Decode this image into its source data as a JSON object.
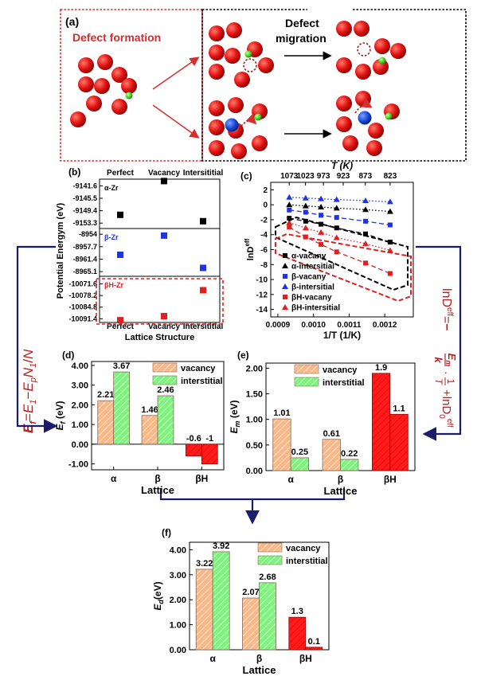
{
  "colors": {
    "atom_red": "#e31414",
    "atom_green": "#44d11e",
    "atom_blue": "#1346d6",
    "frame_red": "#d92b2b",
    "arrow_red": "#d33030",
    "navy": "#1b1b6b",
    "alpha": "#000000",
    "beta": "#1f33e0",
    "betaH": "#e02020",
    "bar_vacancy": "#f7b98a",
    "bar_interstitial": "#7ff27f",
    "bar_red": "#ff1a1a"
  },
  "panel_a": {
    "tag": "(a)",
    "formation_label": "Defect formation",
    "migration_label_1": "Defect",
    "migration_label_2": "migration"
  },
  "formula_left": {
    "lhs": "E",
    "lhs_sub": "f",
    "eq": "=",
    "t1": "E",
    "t1_sub": "1",
    "minus": "−",
    "t2": "E",
    "t2_sub": "p",
    "n1": "N",
    "n1_sub": "1",
    "slash": "/",
    "n": "N"
  },
  "formula_right": {
    "lhs": "lnD",
    "lhs_sup": "eff",
    "eq": "=",
    "neg": "−",
    "num": "E",
    "num_sub": "m",
    "den": "k",
    "dot": "·",
    "one": "1",
    "T": "T",
    "plus": "+",
    "ln": "lnD",
    "ln_sub": "0",
    "ln_sup": "eff"
  },
  "chart_data": [
    {
      "id": "b",
      "tag": "(b)",
      "type": "scatter",
      "xlabel": "Lattice Structure",
      "ylabel": "Potential Energym (eV)",
      "categories": [
        "Perfect",
        "Vacancy",
        "Intersititial"
      ],
      "panels": [
        {
          "name": "α-Zr",
          "ticks": [
            -9141.6,
            -9145.5,
            -9149.4,
            -9153.3
          ],
          "ylim": [
            -9155.0,
            -9139.5
          ],
          "values": [
            -9150.7,
            -9140.1,
            -9152.7
          ]
        },
        {
          "name": "β-Zr",
          "ticks": [
            -8954.0,
            -8957.7,
            -8961.4,
            -8965.1
          ],
          "ylim": [
            -8966.5,
            -8952.3
          ],
          "values": [
            -8960.1,
            -8954.4,
            -8964.0
          ]
        },
        {
          "name": "βH-Zr",
          "ticks": [
            -10071.6,
            -10078.2,
            -10084.8,
            -10091.4
          ],
          "ylim": [
            -10093.5,
            -10067.3
          ],
          "values": [
            -10092.2,
            -10089.9,
            -10075.2
          ]
        }
      ]
    },
    {
      "id": "c",
      "tag": "(c)",
      "type": "scatter",
      "xlabel": "1/T (1/K)",
      "ylabel": "lnD",
      "ylabel_sup": "eff",
      "top_axis_label": "T (K)",
      "top_ticks": [
        823,
        873,
        923,
        973,
        1023,
        1073
      ],
      "xlim": [
        0.00088,
        0.00128
      ],
      "xticks": [
        0.0009,
        0.001,
        0.0011,
        0.0012
      ],
      "xtick_labels": [
        "0.0009",
        "0.0010",
        "0.0011",
        "0.0012"
      ],
      "ylim": [
        -15,
        3
      ],
      "yticks": [
        2,
        0,
        -2,
        -4,
        -6,
        -8,
        -10,
        -12,
        -14
      ],
      "legend_position": "bottom-left",
      "x": [
        0.000932,
        0.000978,
        0.001021,
        0.001065,
        0.001146,
        0.001215
      ],
      "series": [
        {
          "name": "α-vacany",
          "marker": "square",
          "color": "#000000",
          "values": [
            -1.8,
            -2.2,
            -2.6,
            -3.1,
            -3.9,
            -5.0
          ]
        },
        {
          "name": "α-intersitial",
          "marker": "triangle",
          "color": "#000000",
          "values": [
            0.0,
            -0.15,
            -0.3,
            -0.45,
            -0.65,
            -0.9
          ]
        },
        {
          "name": "β-vacany",
          "marker": "square",
          "color": "#1f33e0",
          "values": [
            -0.7,
            -1.0,
            -1.4,
            -1.7,
            -2.2,
            -2.7
          ]
        },
        {
          "name": "β-intersitial",
          "marker": "triangle",
          "color": "#1f33e0",
          "values": [
            1.0,
            0.9,
            0.8,
            0.7,
            0.55,
            0.4
          ]
        },
        {
          "name": "βH-vacany",
          "marker": "square",
          "color": "#e02020",
          "values": [
            -3.0,
            -4.3,
            -5.3,
            -6.3,
            -7.8,
            -9.2
          ]
        },
        {
          "name": "βH-intersitial",
          "marker": "triangle",
          "color": "#e02020",
          "values": [
            -2.4,
            -3.1,
            -3.7,
            -4.4,
            -5.2,
            -6.1
          ]
        }
      ]
    },
    {
      "id": "d",
      "tag": "(d)",
      "type": "bar",
      "categories": [
        "α",
        "β",
        "βH"
      ],
      "xlabel": "Lattice",
      "ylabel": "E",
      "ylabel_sub": "f",
      "ylabel_unit": " (eV)",
      "ylim": [
        -1.3,
        4.2
      ],
      "yticks": [
        4.0,
        3.0,
        2.0,
        1.0,
        0.0,
        -1.0
      ],
      "ytick_labels": [
        "4.00",
        "3.00",
        "2.00",
        "1.00",
        "0.00",
        "-1.00"
      ],
      "legend_position": "top-center",
      "series": [
        {
          "name": "vacancy",
          "values": [
            2.21,
            1.46,
            -0.6
          ],
          "labels": [
            "2.21",
            "1.46",
            "-0.6"
          ]
        },
        {
          "name": "interstitial",
          "values": [
            3.67,
            2.46,
            -1.0
          ],
          "labels": [
            "3.67",
            "2.46",
            "-1"
          ]
        }
      ]
    },
    {
      "id": "e",
      "tag": "(e)",
      "type": "bar",
      "categories": [
        "α",
        "β",
        "βH"
      ],
      "xlabel": "Lattice",
      "ylabel": "E",
      "ylabel_sub": "m",
      "ylabel_unit": " (eV)",
      "ylim": [
        0,
        2.1
      ],
      "yticks": [
        2.0,
        1.5,
        1.0,
        0.5,
        0.0
      ],
      "ytick_labels": [
        "2.00",
        "1.50",
        "1.00",
        "0.50",
        "0.00"
      ],
      "legend_position": "top-center",
      "series": [
        {
          "name": "vacancy",
          "values": [
            1.01,
            0.61,
            1.9
          ],
          "labels": [
            "1.01",
            "0.61",
            "1.9"
          ]
        },
        {
          "name": "interstitial",
          "values": [
            0.25,
            0.22,
            1.1
          ],
          "labels": [
            "0.25",
            "0.22",
            "1.1"
          ]
        }
      ]
    },
    {
      "id": "f",
      "tag": "(f)",
      "type": "bar",
      "categories": [
        "α",
        "β",
        "βH"
      ],
      "xlabel": "Lattice",
      "ylabel": "E",
      "ylabel_sub": "d",
      "ylabel_unit": "(eV)",
      "ylim": [
        0,
        4.3
      ],
      "yticks": [
        4.0,
        3.0,
        2.0,
        1.0,
        0.0
      ],
      "ytick_labels": [
        "4.00",
        "3.00",
        "2.00",
        "1.00",
        "0.00"
      ],
      "legend_position": "top-center",
      "series": [
        {
          "name": "vacancy",
          "values": [
            3.22,
            2.07,
            1.3
          ],
          "labels": [
            "3.22",
            "2.07",
            "1.3"
          ]
        },
        {
          "name": "interstitial",
          "values": [
            3.92,
            2.68,
            0.1
          ],
          "labels": [
            "3.92",
            "2.68",
            "0.1"
          ]
        }
      ]
    }
  ]
}
